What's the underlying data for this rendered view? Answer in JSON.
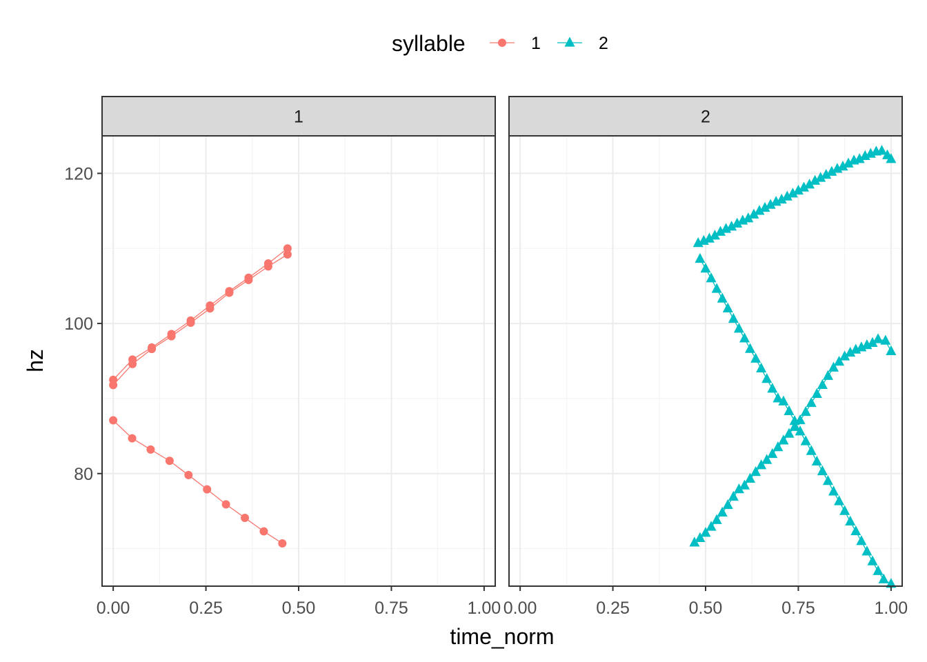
{
  "chart_data": {
    "type": "line",
    "subtype": "faceted line + point",
    "xlabel": "time_norm",
    "ylabel": "hz",
    "xlim": [
      -0.03,
      1.03
    ],
    "ylim": [
      65,
      125
    ],
    "x_ticks": [
      0,
      0.25,
      0.5,
      0.75,
      1
    ],
    "x_tick_labels": [
      "0.00",
      "0.25",
      "0.50",
      "0.75",
      "1.00"
    ],
    "y_ticks": [
      80,
      100,
      120
    ],
    "y_tick_labels": [
      "80",
      "100",
      "120"
    ],
    "grid": true,
    "legend": {
      "title": "syllable",
      "position": "top",
      "entries": [
        {
          "label": "1",
          "color": "#F8766D",
          "shape": "circle"
        },
        {
          "label": "2",
          "color": "#00BFC4",
          "shape": "triangle"
        }
      ]
    },
    "facets": [
      {
        "label": "1",
        "series": [
          {
            "syllable": "1",
            "points": [
              [
                0,
                92.5
              ],
              [
                0.052,
                95.2
              ],
              [
                0.104,
                96.8
              ],
              [
                0.157,
                98.6
              ],
              [
                0.209,
                100.4
              ],
              [
                0.261,
                102.4
              ],
              [
                0.313,
                104.3
              ],
              [
                0.365,
                106.1
              ],
              [
                0.418,
                108.0
              ],
              [
                0.47,
                110.0
              ]
            ]
          },
          {
            "syllable": "1",
            "points": [
              [
                0,
                91.8
              ],
              [
                0.052,
                94.6
              ],
              [
                0.104,
                96.6
              ],
              [
                0.157,
                98.3
              ],
              [
                0.209,
                100.1
              ],
              [
                0.261,
                102.0
              ],
              [
                0.313,
                104.1
              ],
              [
                0.365,
                105.8
              ],
              [
                0.418,
                107.6
              ],
              [
                0.47,
                109.2
              ]
            ]
          },
          {
            "syllable": "1",
            "points": [
              [
                0,
                87.1
              ],
              [
                0.051,
                84.7
              ],
              [
                0.101,
                83.2
              ],
              [
                0.152,
                81.7
              ],
              [
                0.203,
                79.8
              ],
              [
                0.253,
                77.9
              ],
              [
                0.304,
                75.9
              ],
              [
                0.355,
                74.1
              ],
              [
                0.406,
                72.3
              ],
              [
                0.456,
                70.7
              ]
            ]
          }
        ]
      },
      {
        "label": "2",
        "series": [
          {
            "syllable": "2",
            "points": [
              [
                0.48,
                110.7
              ],
              [
                0.495,
                111.0
              ],
              [
                0.51,
                111.3
              ],
              [
                0.525,
                111.7
              ],
              [
                0.54,
                112.2
              ],
              [
                0.555,
                112.6
              ],
              [
                0.57,
                112.9
              ],
              [
                0.585,
                113.3
              ],
              [
                0.6,
                113.7
              ],
              [
                0.615,
                114.0
              ],
              [
                0.63,
                114.5
              ],
              [
                0.645,
                115.0
              ],
              [
                0.66,
                115.4
              ],
              [
                0.675,
                115.8
              ],
              [
                0.69,
                116.2
              ],
              [
                0.705,
                116.5
              ],
              [
                0.72,
                116.9
              ],
              [
                0.735,
                117.3
              ],
              [
                0.75,
                117.7
              ],
              [
                0.765,
                118.1
              ],
              [
                0.78,
                118.5
              ],
              [
                0.795,
                119.0
              ],
              [
                0.81,
                119.4
              ],
              [
                0.825,
                119.8
              ],
              [
                0.84,
                120.2
              ],
              [
                0.855,
                120.6
              ],
              [
                0.87,
                120.9
              ],
              [
                0.885,
                121.3
              ],
              [
                0.9,
                121.7
              ],
              [
                0.915,
                121.9
              ],
              [
                0.93,
                122.3
              ],
              [
                0.945,
                122.6
              ],
              [
                0.96,
                122.9
              ],
              [
                0.975,
                123.0
              ],
              [
                0.99,
                122.4
              ],
              [
                1.0,
                121.9
              ]
            ]
          },
          {
            "syllable": "2",
            "points": [
              [
                0.485,
                108.6
              ],
              [
                0.5,
                107.3
              ],
              [
                0.515,
                106.0
              ],
              [
                0.53,
                104.6
              ],
              [
                0.545,
                103.3
              ],
              [
                0.56,
                102.0
              ],
              [
                0.575,
                100.6
              ],
              [
                0.59,
                99.3
              ],
              [
                0.605,
                98.0
              ],
              [
                0.62,
                96.6
              ],
              [
                0.635,
                95.3
              ],
              [
                0.65,
                94.0
              ],
              [
                0.665,
                92.6
              ],
              [
                0.68,
                91.3
              ],
              [
                0.695,
                90.0
              ],
              [
                0.71,
                89.6
              ],
              [
                0.725,
                88.3
              ],
              [
                0.74,
                87.0
              ],
              [
                0.755,
                85.6
              ],
              [
                0.77,
                84.3
              ],
              [
                0.785,
                83.0
              ],
              [
                0.8,
                81.6
              ],
              [
                0.815,
                80.3
              ],
              [
                0.83,
                79.0
              ],
              [
                0.845,
                77.6
              ],
              [
                0.86,
                76.3
              ],
              [
                0.875,
                75.0
              ],
              [
                0.89,
                73.6
              ],
              [
                0.905,
                72.3
              ],
              [
                0.92,
                71.0
              ],
              [
                0.935,
                69.6
              ],
              [
                0.95,
                68.3
              ],
              [
                0.965,
                67.0
              ],
              [
                0.98,
                65.9
              ],
              [
                1.0,
                65.3
              ]
            ]
          },
          {
            "syllable": "2",
            "points": [
              [
                0.47,
                70.8
              ],
              [
                0.485,
                71.4
              ],
              [
                0.5,
                72.1
              ],
              [
                0.515,
                72.9
              ],
              [
                0.53,
                73.8
              ],
              [
                0.545,
                74.8
              ],
              [
                0.56,
                75.8
              ],
              [
                0.575,
                76.9
              ],
              [
                0.59,
                77.9
              ],
              [
                0.605,
                78.4
              ],
              [
                0.62,
                79.3
              ],
              [
                0.635,
                80.2
              ],
              [
                0.65,
                81.1
              ],
              [
                0.665,
                81.8
              ],
              [
                0.68,
                82.6
              ],
              [
                0.695,
                83.5
              ],
              [
                0.71,
                84.4
              ],
              [
                0.725,
                85.3
              ],
              [
                0.74,
                86.2
              ],
              [
                0.755,
                87.1
              ],
              [
                0.77,
                88.2
              ],
              [
                0.785,
                89.4
              ],
              [
                0.8,
                90.6
              ],
              [
                0.815,
                91.8
              ],
              [
                0.83,
                93.0
              ],
              [
                0.845,
                94.1
              ],
              [
                0.86,
                94.9
              ],
              [
                0.875,
                95.6
              ],
              [
                0.89,
                96.1
              ],
              [
                0.905,
                96.5
              ],
              [
                0.92,
                96.8
              ],
              [
                0.935,
                97.1
              ],
              [
                0.95,
                97.4
              ],
              [
                0.965,
                97.9
              ],
              [
                0.985,
                97.7
              ],
              [
                1.0,
                96.3
              ]
            ]
          }
        ]
      }
    ]
  }
}
